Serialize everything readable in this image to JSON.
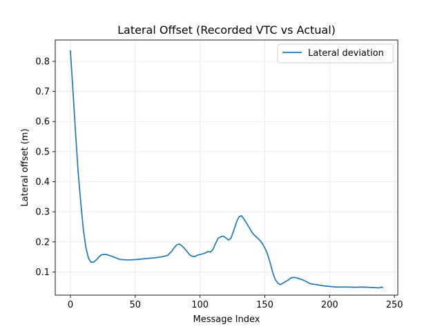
{
  "chart_data": {
    "type": "line",
    "title": "Lateral Offset (Recorded VTC vs Actual)",
    "xlabel": "Message Index",
    "ylabel": "Lateral offset (m)",
    "xlim": [
      -11.7,
      252.6
    ],
    "ylim": [
      0.023,
      0.871
    ],
    "xticks": [
      0,
      50,
      100,
      150,
      200,
      250
    ],
    "yticks": [
      0.1,
      0.2,
      0.3,
      0.4,
      0.5,
      0.6,
      0.7,
      0.8
    ],
    "grid": true,
    "legend_position": "top-right",
    "series": [
      {
        "name": "Lateral deviation",
        "color": "#1f77b4",
        "x": [
          0,
          2,
          4,
          6,
          8,
          10,
          12,
          14,
          16,
          18,
          20,
          22,
          24,
          26,
          28,
          30,
          32,
          34,
          36,
          38,
          40,
          45,
          50,
          55,
          60,
          65,
          70,
          75,
          78,
          80,
          82,
          84,
          86,
          88,
          90,
          92,
          94,
          96,
          98,
          100,
          102,
          104,
          106,
          108,
          110,
          112,
          114,
          116,
          118,
          120,
          122,
          124,
          126,
          128,
          130,
          132,
          134,
          136,
          138,
          140,
          142,
          144,
          146,
          148,
          150,
          152,
          154,
          156,
          158,
          160,
          162,
          164,
          166,
          168,
          170,
          172,
          174,
          176,
          178,
          180,
          182,
          184,
          186,
          188,
          190,
          195,
          200,
          205,
          210,
          215,
          220,
          225,
          230,
          235,
          238,
          240,
          241
        ],
        "y": [
          0.835,
          0.7,
          0.56,
          0.43,
          0.33,
          0.24,
          0.18,
          0.145,
          0.132,
          0.133,
          0.14,
          0.15,
          0.157,
          0.159,
          0.158,
          0.155,
          0.152,
          0.149,
          0.145,
          0.142,
          0.141,
          0.14,
          0.141,
          0.143,
          0.145,
          0.147,
          0.15,
          0.155,
          0.168,
          0.18,
          0.19,
          0.193,
          0.187,
          0.178,
          0.168,
          0.157,
          0.152,
          0.151,
          0.156,
          0.158,
          0.16,
          0.163,
          0.168,
          0.166,
          0.175,
          0.195,
          0.212,
          0.217,
          0.219,
          0.213,
          0.206,
          0.213,
          0.238,
          0.264,
          0.283,
          0.287,
          0.275,
          0.262,
          0.247,
          0.232,
          0.222,
          0.214,
          0.206,
          0.195,
          0.18,
          0.16,
          0.132,
          0.1,
          0.075,
          0.063,
          0.058,
          0.063,
          0.068,
          0.073,
          0.08,
          0.082,
          0.081,
          0.078,
          0.076,
          0.072,
          0.068,
          0.063,
          0.06,
          0.059,
          0.058,
          0.054,
          0.052,
          0.05,
          0.05,
          0.05,
          0.049,
          0.05,
          0.049,
          0.048,
          0.047,
          0.05,
          0.048
        ]
      }
    ]
  }
}
